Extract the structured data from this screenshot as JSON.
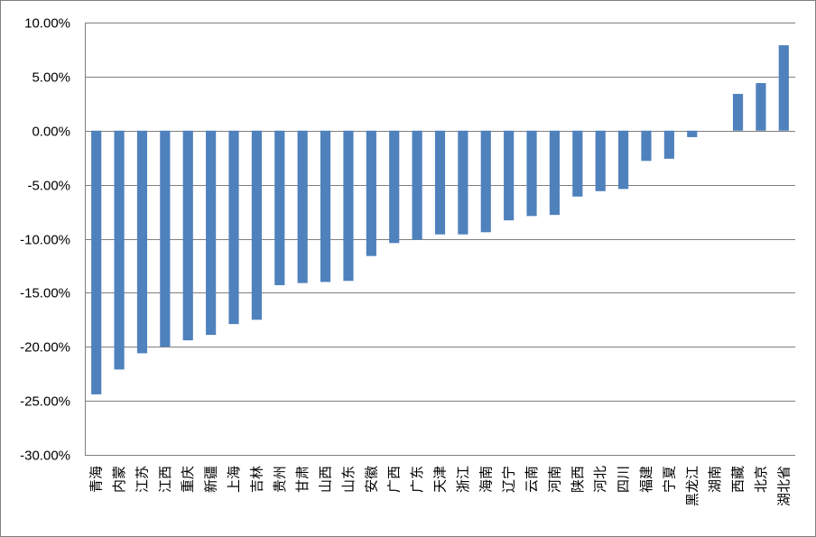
{
  "chart_data": {
    "type": "bar",
    "title": "",
    "xlabel": "",
    "ylabel": "",
    "ylim": [
      -30,
      10
    ],
    "ytick_step": 5,
    "ytick_format": "percent_2dp",
    "grid": true,
    "legend": "none",
    "bar_color": "#4f81bd",
    "grid_color": "#7f7f7f",
    "categories": [
      "青海",
      "内蒙",
      "江苏",
      "江西",
      "重庆",
      "新疆",
      "上海",
      "吉林",
      "贵州",
      "甘肃",
      "山西",
      "山东",
      "安徽",
      "广西",
      "广东",
      "天津",
      "浙江",
      "海南",
      "辽宁",
      "云南",
      "河南",
      "陕西",
      "河北",
      "四川",
      "福建",
      "宁夏",
      "黑龙江",
      "湖南",
      "西藏",
      "北京",
      "湖北省"
    ],
    "values": [
      -24.4,
      -22.1,
      -20.6,
      -20.0,
      -19.4,
      -18.9,
      -17.9,
      -17.5,
      -14.3,
      -14.1,
      -14.0,
      -13.9,
      -11.6,
      -10.4,
      -10.1,
      -9.6,
      -9.6,
      -9.4,
      -8.3,
      -7.9,
      -7.8,
      -6.1,
      -5.6,
      -5.4,
      -2.8,
      -2.6,
      -0.6,
      0.0,
      3.4,
      4.4,
      7.9
    ]
  }
}
